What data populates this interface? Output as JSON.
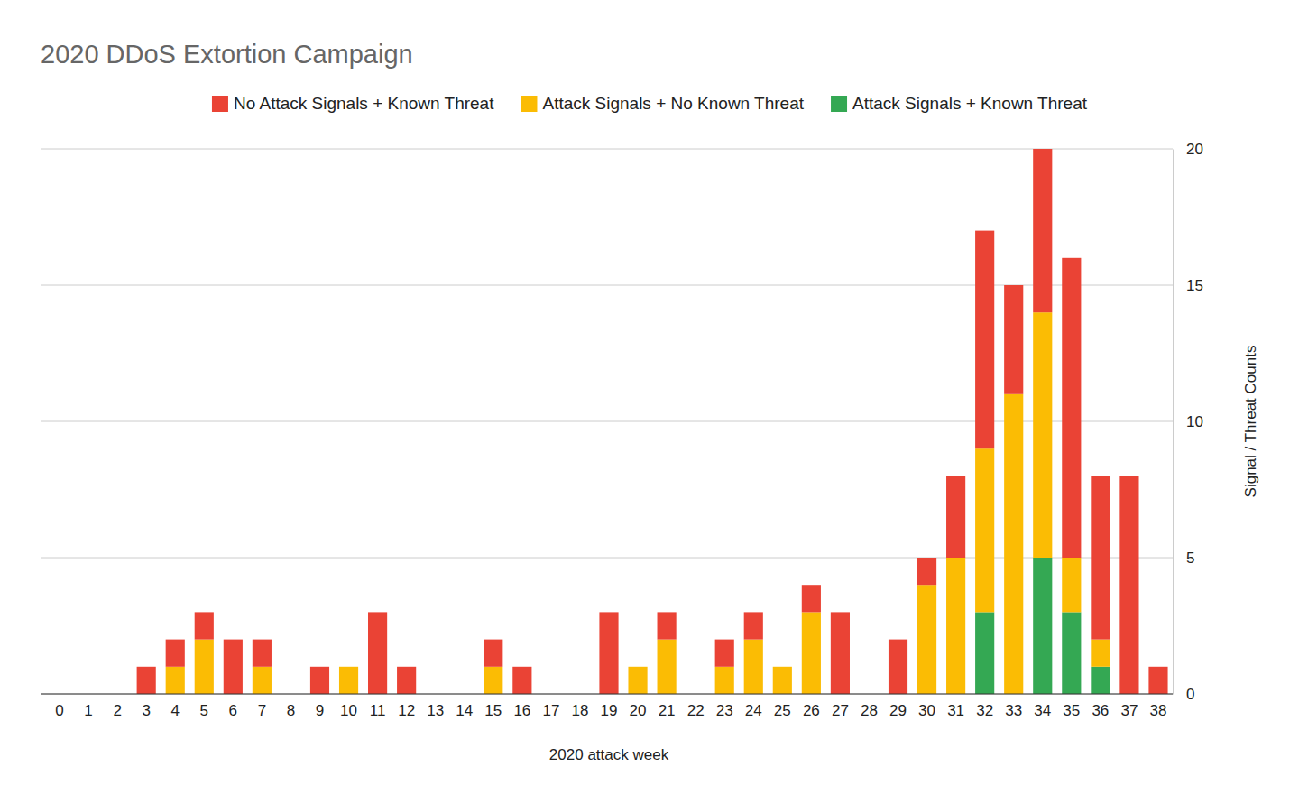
{
  "chart_data": {
    "type": "bar",
    "title": "2020 DDoS Extortion Campaign",
    "x_label": "2020 attack week",
    "y_label": "Signal / Threat Counts",
    "categories": [
      "0",
      "1",
      "2",
      "3",
      "4",
      "5",
      "6",
      "7",
      "8",
      "9",
      "10",
      "11",
      "12",
      "13",
      "14",
      "15",
      "16",
      "17",
      "18",
      "19",
      "20",
      "21",
      "22",
      "23",
      "24",
      "25",
      "26",
      "27",
      "28",
      "29",
      "30",
      "31",
      "32",
      "33",
      "34",
      "35",
      "36",
      "37",
      "38"
    ],
    "series": [
      {
        "name": "No Attack Signals + Known Threat",
        "color": "#ea4335",
        "values": [
          0,
          0,
          0,
          1,
          1,
          1,
          2,
          1,
          0,
          1,
          0,
          3,
          1,
          0,
          0,
          1,
          1,
          0,
          0,
          3,
          0,
          1,
          0,
          1,
          1,
          0,
          1,
          3,
          0,
          2,
          1,
          3,
          8,
          4,
          6,
          11,
          6,
          8,
          1
        ]
      },
      {
        "name": "Attack Signals + No Known Threat",
        "color": "#fbbc04",
        "values": [
          0,
          0,
          0,
          0,
          1,
          2,
          0,
          1,
          0,
          0,
          1,
          0,
          0,
          0,
          0,
          1,
          0,
          0,
          0,
          0,
          1,
          2,
          0,
          1,
          2,
          1,
          3,
          0,
          0,
          0,
          4,
          5,
          6,
          11,
          9,
          2,
          1,
          0,
          0
        ]
      },
      {
        "name": "Attack Signals + Known Threat",
        "color": "#34a853",
        "values": [
          0,
          0,
          0,
          0,
          0,
          0,
          0,
          0,
          0,
          0,
          0,
          0,
          0,
          0,
          0,
          0,
          0,
          0,
          0,
          0,
          0,
          0,
          0,
          0,
          0,
          0,
          0,
          0,
          0,
          0,
          0,
          0,
          3,
          0,
          5,
          3,
          1,
          0,
          0
        ]
      }
    ],
    "ylim": [
      0,
      20
    ],
    "yticks": [
      0,
      5,
      10,
      15,
      20
    ],
    "grid": true,
    "stacked": true,
    "legend": "top"
  }
}
